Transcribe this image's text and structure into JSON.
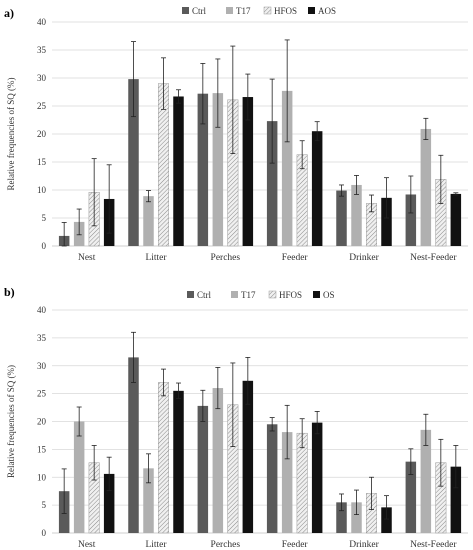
{
  "colors": {
    "ctrl": "#5a5a5a",
    "t17": "#b0b0b0",
    "hfos": "#d9d9d9",
    "aos": "#111111",
    "grid": "#d8d8d8",
    "axis": "#bfbfbf"
  },
  "chart_data": [
    {
      "panel_label": "a)",
      "type": "bar",
      "ylabel": "Relative frequencies of SQ (%)",
      "ylim": [
        0,
        40
      ],
      "yticks": [
        0,
        5,
        10,
        15,
        20,
        25,
        30,
        35,
        40
      ],
      "grid": true,
      "legend": "top-center",
      "categories": [
        "Nest",
        "Litter",
        "Perches",
        "Feeder",
        "Drinker",
        "Nest-Feeder"
      ],
      "series": [
        {
          "name": "Ctrl",
          "pattern": "solid-dark",
          "values": [
            1.8,
            29.8,
            27.2,
            22.3,
            9.9,
            9.2
          ],
          "errors": [
            2.4,
            6.7,
            5.4,
            7.5,
            1.0,
            3.3
          ]
        },
        {
          "name": "T17",
          "pattern": "solid-light",
          "values": [
            4.3,
            8.9,
            27.3,
            27.7,
            10.9,
            20.9
          ],
          "errors": [
            2.3,
            1.0,
            6.1,
            9.1,
            1.7,
            1.9
          ]
        },
        {
          "name": "HFOS",
          "pattern": "hatched",
          "values": [
            9.6,
            29.0,
            26.1,
            16.3,
            7.6,
            11.9
          ],
          "errors": [
            6.0,
            4.6,
            9.6,
            2.5,
            1.5,
            4.3
          ]
        },
        {
          "name": "AOS",
          "pattern": "solid-black",
          "values": [
            8.4,
            26.7,
            26.6,
            20.5,
            8.6,
            9.3
          ],
          "errors": [
            6.1,
            1.2,
            4.1,
            1.7,
            3.6,
            0.2
          ]
        }
      ]
    },
    {
      "panel_label": "b)",
      "type": "bar",
      "ylabel": "Relative frequencies of SQ (%)",
      "ylim": [
        0,
        40
      ],
      "yticks": [
        0,
        5,
        10,
        15,
        20,
        25,
        30,
        35,
        40
      ],
      "grid": true,
      "legend": "top-center",
      "categories": [
        "Nest",
        "Litter",
        "Perches",
        "Feeder",
        "Drinker",
        "Nest-Feeder"
      ],
      "series": [
        {
          "name": "Ctrl",
          "pattern": "solid-dark",
          "values": [
            7.5,
            31.5,
            22.8,
            19.5,
            5.5,
            12.8
          ],
          "errors": [
            4.0,
            4.5,
            2.8,
            1.2,
            1.5,
            2.3
          ]
        },
        {
          "name": "T17",
          "pattern": "solid-light",
          "values": [
            20.0,
            11.6,
            26.0,
            18.1,
            5.5,
            18.5
          ],
          "errors": [
            2.6,
            2.6,
            3.7,
            4.8,
            2.2,
            2.8
          ]
        },
        {
          "name": "HFOS",
          "pattern": "hatched",
          "values": [
            12.6,
            27.0,
            23.0,
            17.9,
            7.1,
            12.6
          ],
          "errors": [
            3.1,
            2.4,
            7.5,
            2.6,
            2.9,
            4.2
          ]
        },
        {
          "name": "OS",
          "pattern": "solid-black",
          "values": [
            10.6,
            25.5,
            27.3,
            19.8,
            4.6,
            11.9
          ],
          "errors": [
            3.0,
            1.4,
            4.2,
            2.0,
            2.1,
            3.8
          ]
        }
      ]
    }
  ]
}
